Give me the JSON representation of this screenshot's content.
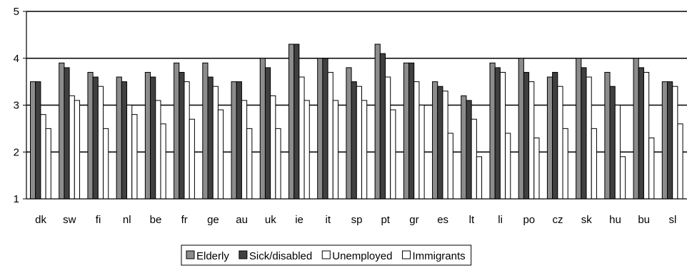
{
  "chart_data": {
    "type": "bar",
    "title": "",
    "xlabel": "",
    "ylabel": "",
    "ylim": [
      1,
      5
    ],
    "yticks": [
      "1",
      "2",
      "3",
      "4",
      "5"
    ],
    "grid": "horizontal",
    "legend_position": "bottom",
    "categories": [
      "dk",
      "sw",
      "fi",
      "nl",
      "be",
      "fr",
      "ge",
      "au",
      "uk",
      "ie",
      "it",
      "sp",
      "pt",
      "gr",
      "es",
      "lt",
      "li",
      "po",
      "cz",
      "sk",
      "hu",
      "bu",
      "sl"
    ],
    "series": [
      {
        "name": "Elderly",
        "color": "#8c8c8c",
        "values": [
          3.5,
          3.9,
          3.7,
          3.6,
          3.7,
          3.9,
          3.9,
          3.5,
          4.0,
          4.3,
          4.0,
          3.8,
          4.3,
          3.9,
          3.5,
          3.2,
          3.9,
          4.0,
          3.6,
          4.0,
          3.7,
          4.0,
          3.5
        ]
      },
      {
        "name": "Sick/disabled",
        "color": "#404040",
        "values": [
          3.5,
          3.8,
          3.6,
          3.5,
          3.6,
          3.7,
          3.6,
          3.5,
          3.8,
          4.3,
          4.0,
          3.5,
          4.1,
          3.9,
          3.4,
          3.1,
          3.8,
          3.7,
          3.7,
          3.8,
          3.4,
          3.8,
          3.5
        ]
      },
      {
        "name": "Unemployed",
        "color": "#ffffff",
        "values": [
          2.8,
          3.2,
          3.4,
          3.0,
          3.1,
          3.5,
          3.4,
          3.1,
          3.2,
          3.6,
          3.7,
          3.4,
          3.6,
          3.5,
          3.3,
          2.7,
          3.7,
          3.5,
          3.4,
          3.6,
          3.0,
          3.7,
          3.4
        ]
      },
      {
        "name": "Immigrants",
        "color": "#ffffff",
        "values": [
          2.5,
          3.1,
          2.5,
          2.8,
          2.6,
          2.7,
          2.9,
          2.5,
          2.5,
          3.1,
          3.1,
          3.1,
          2.9,
          3.0,
          2.4,
          1.9,
          2.4,
          2.3,
          2.5,
          2.5,
          1.9,
          2.3,
          2.6
        ]
      }
    ]
  }
}
